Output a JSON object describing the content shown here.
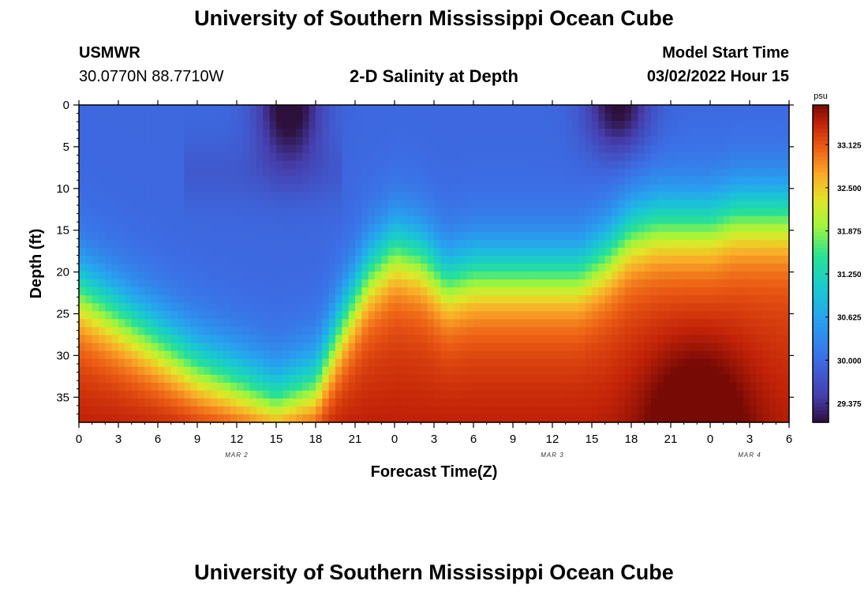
{
  "page": {
    "title_top": "University of Southern Mississippi Ocean Cube",
    "title_bottom": "University of Southern Mississippi Ocean Cube",
    "station": "USMWR",
    "coords": "30.0770N  88.7710W",
    "subtitle": "2-D Salinity at Depth",
    "model_label": "Model Start Time",
    "model_time": "03/02/2022 Hour 15"
  },
  "chart_data": {
    "type": "heatmap",
    "title": "2-D Salinity at Depth",
    "xlabel": "Forecast Time(Z)",
    "ylabel": "Depth (ft)",
    "x_range_hours": [
      0,
      54
    ],
    "ylim": [
      0,
      38
    ],
    "x_tick_labels": [
      "0",
      "3",
      "6",
      "9",
      "12",
      "15",
      "18",
      "21",
      "0",
      "3",
      "6",
      "9",
      "12",
      "15",
      "18",
      "21",
      "0",
      "3",
      "6"
    ],
    "y_ticks": [
      0,
      5,
      10,
      15,
      20,
      25,
      30,
      35
    ],
    "date_labels": [
      {
        "text": "MAR 2",
        "hour": 12
      },
      {
        "text": "MAR 3",
        "hour": 36
      },
      {
        "text": "MAR 4",
        "hour": 51
      }
    ],
    "colorbar": {
      "unit": "psu",
      "range": [
        29.1,
        33.7
      ],
      "ticks": [
        "33.125",
        "32.500",
        "31.875",
        "31.250",
        "30.625",
        "30.000",
        "29.375"
      ]
    },
    "mixed_layer_depth_ft_by_hour": [
      {
        "hour": 0,
        "depth": 22
      },
      {
        "hour": 3,
        "depth": 25
      },
      {
        "hour": 6,
        "depth": 28
      },
      {
        "hour": 9,
        "depth": 31
      },
      {
        "hour": 12,
        "depth": 33
      },
      {
        "hour": 15,
        "depth": 35
      },
      {
        "hour": 18,
        "depth": 33
      },
      {
        "hour": 20,
        "depth": 26
      },
      {
        "hour": 22,
        "depth": 20
      },
      {
        "hour": 24,
        "depth": 17
      },
      {
        "hour": 26,
        "depth": 18
      },
      {
        "hour": 28,
        "depth": 21
      },
      {
        "hour": 30,
        "depth": 20
      },
      {
        "hour": 32,
        "depth": 20
      },
      {
        "hour": 34,
        "depth": 20
      },
      {
        "hour": 36,
        "depth": 20
      },
      {
        "hour": 38,
        "depth": 20
      },
      {
        "hour": 40,
        "depth": 18
      },
      {
        "hour": 42,
        "depth": 15
      },
      {
        "hour": 44,
        "depth": 14
      },
      {
        "hour": 46,
        "depth": 14
      },
      {
        "hour": 48,
        "depth": 14
      },
      {
        "hour": 50,
        "depth": 13
      },
      {
        "hour": 52,
        "depth": 13
      },
      {
        "hour": 54,
        "depth": 13
      }
    ],
    "surface_minima": [
      {
        "hour": 16,
        "depth": 0,
        "spread_hours": 2.4,
        "spread_ft": 7,
        "drop_psu": 1.0
      },
      {
        "hour": 41,
        "depth": 0,
        "spread_hours": 2.4,
        "spread_ft": 6,
        "drop_psu": 0.9
      }
    ],
    "bottom_maxima": [
      {
        "hour": 47,
        "depth": 38,
        "spread_hours": 4,
        "spread_ft": 10,
        "rise_psu": 0.6
      }
    ]
  }
}
